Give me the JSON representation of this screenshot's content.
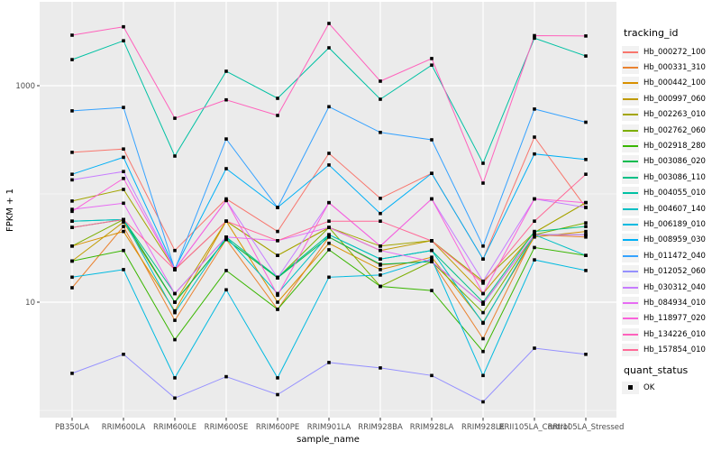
{
  "figure": {
    "background": "#FFFFFF",
    "panel_background": "#EBEBEB",
    "gridline_color": "#FFFFFF",
    "tick_label_color": "#4D4D4D",
    "axis_title_color": "#000000",
    "point_color": "#000000",
    "legend_key_background": "#F2F2F2"
  },
  "chart_data": {
    "type": "line",
    "title": "",
    "xlabel": "sample_name",
    "ylabel": "FPKM + 1",
    "y_scale": "log10",
    "y_tick_labels": [
      "1000",
      "10"
    ],
    "y_tick_values": [
      1000,
      10
    ],
    "y_minor_values": [
      100,
      1
    ],
    "grid": true,
    "legend_position": "right",
    "categories": [
      "PB350LA",
      "RRIM600LA",
      "RRIM600LE",
      "RRIM600SE",
      "RRIM600PE",
      "RRIM901LA",
      "RRIM928BA",
      "RRIM928LA",
      "RRIM928LE",
      "RRII105LA_Control",
      "RRII105LA_Stressed"
    ],
    "legend": {
      "title": "tracking_id"
    },
    "quant_status": {
      "title": "quant_status",
      "items": [
        {
          "label": "OK",
          "shape": "filled-square"
        }
      ]
    },
    "series": [
      {
        "name": "Hb_000272_100",
        "color": "#F8766D",
        "values": [
          242,
          260,
          30,
          90,
          45,
          237,
          91,
          155,
          25,
          335,
          75
        ]
      },
      {
        "name": "Hb_000331_310",
        "color": "#EA8331",
        "values": [
          13.6,
          50,
          6.8,
          38,
          8.6,
          40,
          22,
          24,
          4.6,
          42,
          40
        ]
      },
      {
        "name": "Hb_000442_100",
        "color": "#D89000",
        "values": [
          33,
          45,
          8.3,
          56,
          10,
          35,
          20,
          26,
          6.5,
          40,
          45
        ]
      },
      {
        "name": "Hb_000997_060",
        "color": "#C09B00",
        "values": [
          24,
          55,
          10,
          56,
          27,
          49,
          30,
          37,
          12,
          44,
          83
        ]
      },
      {
        "name": "Hb_002263_010",
        "color": "#A3A500",
        "values": [
          86,
          110,
          20,
          56,
          27,
          49,
          33,
          37,
          15.6,
          44,
          83
        ]
      },
      {
        "name": "Hb_002762_060",
        "color": "#7CAE00",
        "values": [
          33,
          58,
          10,
          38,
          16.8,
          49,
          14,
          23.7,
          8,
          42,
          54
        ]
      },
      {
        "name": "Hb_002918_280",
        "color": "#39B600",
        "values": [
          24,
          30,
          4.5,
          19.6,
          8.6,
          30.5,
          14,
          12.8,
          3.5,
          32,
          27
        ]
      },
      {
        "name": "Hb_003086_020",
        "color": "#00BB4E",
        "values": [
          49,
          58,
          10,
          38,
          16.8,
          40,
          22.4,
          23.7,
          9.6,
          42,
          42
        ]
      },
      {
        "name": "Hb_003086_110",
        "color": "#00C087",
        "values": [
          56,
          58,
          12,
          40,
          17,
          42,
          25,
          30,
          10,
          45,
          50
        ]
      },
      {
        "name": "Hb_004055_010",
        "color": "#00C1A3",
        "values": [
          1740,
          2600,
          224,
          1360,
          765,
          2240,
          750,
          1550,
          192,
          2750,
          1880
        ]
      },
      {
        "name": "Hb_004607_140",
        "color": "#00BFC4",
        "values": [
          56,
          58,
          8,
          40,
          12,
          42,
          25,
          30,
          6.4,
          42,
          27
        ]
      },
      {
        "name": "Hb_006189_010",
        "color": "#00BAE0",
        "values": [
          17,
          20,
          2.0,
          13,
          2.0,
          17,
          17.8,
          25,
          2.1,
          24.6,
          19.6
        ]
      },
      {
        "name": "Hb_008959_030",
        "color": "#00B0F6",
        "values": [
          152,
          218,
          20.4,
          171,
          75,
          185,
          66,
          155,
          25,
          234,
          208
        ]
      },
      {
        "name": "Hb_011472_040",
        "color": "#35A2FF",
        "values": [
          585,
          630,
          20,
          322,
          75,
          640,
          370,
          316,
          33,
          608,
          460
        ]
      },
      {
        "name": "Hb_012052_060",
        "color": "#9590FF",
        "values": [
          2.2,
          3.3,
          1.3,
          2.05,
          1.4,
          2.77,
          2.47,
          2.1,
          1.2,
          3.76,
          3.3
        ]
      },
      {
        "name": "Hb_030312_040",
        "color": "#C77CFF",
        "values": [
          135,
          161,
          20,
          87,
          16.8,
          83,
          33,
          90,
          15.6,
          90,
          75
        ]
      },
      {
        "name": "Hb_084934_010",
        "color": "#E76BF3",
        "values": [
          72,
          82,
          12,
          40,
          37,
          49,
          30,
          23.7,
          9.6,
          42,
          42
        ]
      },
      {
        "name": "Hb_118977_020",
        "color": "#FA62DB",
        "values": [
          69,
          139,
          20,
          87,
          11.6,
          83,
          33,
          90,
          12,
          90,
          83
        ]
      },
      {
        "name": "Hb_134226_010",
        "color": "#FF62BC",
        "values": [
          2930,
          3500,
          500,
          740,
          531,
          3760,
          1100,
          1780,
          126,
          2900,
          2880
        ]
      },
      {
        "name": "Hb_157854_010",
        "color": "#FF6A98",
        "values": [
          49,
          58,
          20,
          56,
          37,
          56,
          56,
          36.8,
          15,
          56,
          152
        ]
      }
    ]
  }
}
